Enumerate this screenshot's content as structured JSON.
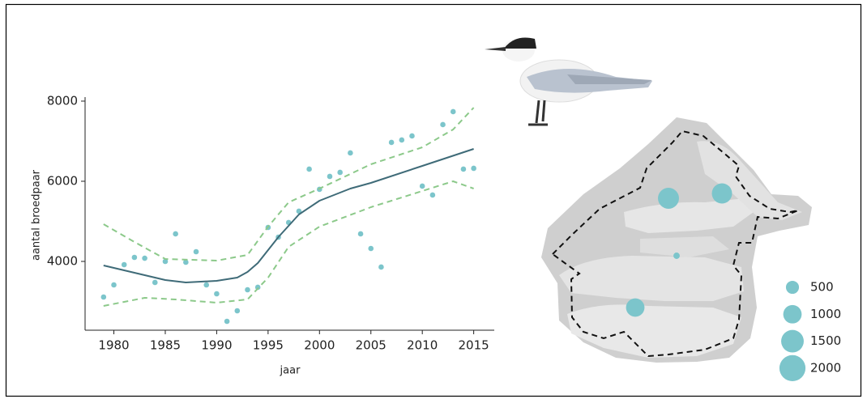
{
  "chart_data": [
    {
      "type": "scatter",
      "x_label": "jaar",
      "y_label": "aantal broedpaar",
      "xlim": [
        1977.2,
        2017
      ],
      "ylim": [
        2283,
        8100
      ],
      "xticks": [
        1980,
        1985,
        1990,
        1995,
        2000,
        2005,
        2010,
        2015
      ],
      "yticks": [
        4000,
        6000,
        8000
      ],
      "series": [
        {
          "style": "points",
          "color": "#7cc5cb",
          "x": [
            1979,
            1980,
            1981,
            1982,
            1983,
            1984,
            1985,
            1986,
            1987,
            1988,
            1989,
            1990,
            1991,
            1992,
            1993,
            1994,
            1995,
            1996,
            1997,
            1998,
            1999,
            2000,
            2001,
            2002,
            2003,
            2004,
            2005,
            2006,
            2007,
            2008,
            2009,
            2010,
            2011,
            2012,
            2013,
            2014,
            2015
          ],
          "values": [
            3111,
            3414,
            3919,
            4101,
            4080,
            3475,
            4000,
            4687,
            3980,
            4242,
            3414,
            3192,
            2505,
            2768,
            3293,
            3354,
            4848,
            4606,
            4970,
            5253,
            6303,
            5798,
            6121,
            6222,
            6707,
            4687,
            4323,
            3859,
            6970,
            7030,
            7131,
            5879,
            5657,
            7414,
            7737,
            6303,
            6323
          ]
        },
        {
          "style": "solid",
          "color": "#3f6b78",
          "x": [
            1979,
            1985,
            1987,
            1990,
            1992,
            1993,
            1994,
            1996,
            1998,
            2000,
            2003,
            2005,
            2010,
            2015
          ],
          "values": [
            3899,
            3535,
            3475,
            3515,
            3596,
            3737,
            3960,
            4606,
            5172,
            5515,
            5818,
            5960,
            6384,
            6808
          ]
        },
        {
          "style": "dashed",
          "color": "#8cc98a",
          "x": [
            1979,
            1982,
            1985,
            1990,
            1993,
            1995,
            1997,
            2000,
            2005,
            2010,
            2013,
            2015
          ],
          "values": [
            4929,
            4485,
            4061,
            4020,
            4162,
            4869,
            5475,
            5818,
            6424,
            6848,
            7293,
            7838
          ]
        },
        {
          "style": "dashed",
          "color": "#8cc98a",
          "x": [
            1979,
            1983,
            1986,
            1990,
            1993,
            1995,
            1997,
            2000,
            2005,
            2010,
            2013,
            2015
          ],
          "values": [
            2889,
            3091,
            3050,
            2970,
            3050,
            3596,
            4364,
            4869,
            5354,
            5758,
            6000,
            5818
          ]
        }
      ]
    },
    {
      "type": "bubble-map",
      "color": "#7cc5cb",
      "sizes": [
        1300,
        1200,
        1000,
        120
      ],
      "legend_sizes": [
        500,
        1000,
        1500,
        2000
      ]
    }
  ]
}
